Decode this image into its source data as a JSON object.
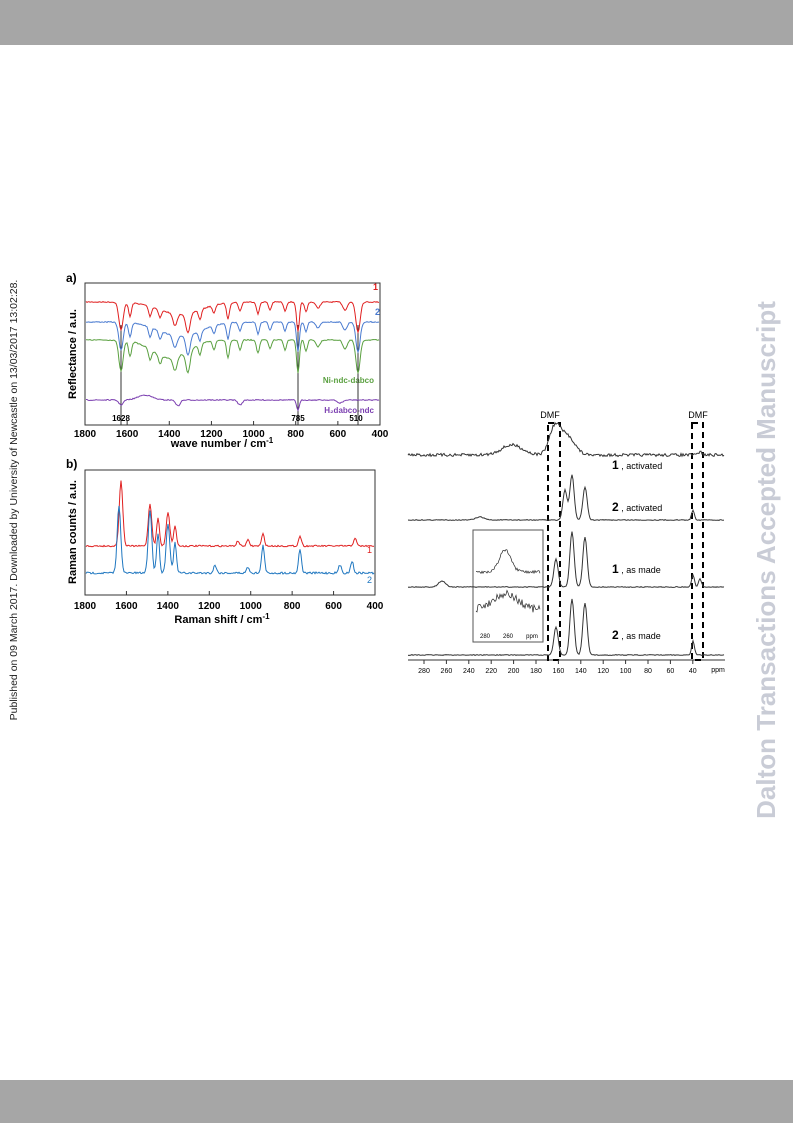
{
  "side_note": "Published on 09 March 2017. Downloaded by University of Newcastle on 13/03/2017 13:02:28.",
  "watermark": "Dalton Transactions Accepted Manuscript",
  "panel_a": {
    "label": "a)",
    "y_label": "Reflectance / a.u.",
    "x_label": "wave number  / cm",
    "x_label_sup": "-1",
    "x_ticks": [
      "1800",
      "1600",
      "1400",
      "1200",
      "1000",
      "800",
      "600",
      "400"
    ],
    "trace_labels": [
      "1",
      "2",
      "Ni-ndc-dabco",
      "H₂dabco-ndc"
    ],
    "peak_labels": [
      "1628",
      "785",
      "510"
    ]
  },
  "panel_b": {
    "label": "b)",
    "y_label": "Raman counts / a.u.",
    "x_label": "Raman shift  / cm",
    "x_label_sup": "-1",
    "x_ticks": [
      "1800",
      "1600",
      "1400",
      "1200",
      "1000",
      "800",
      "600",
      "400"
    ],
    "trace_labels": [
      "1",
      "2"
    ]
  },
  "nmr": {
    "x_ticks": [
      "280",
      "260",
      "240",
      "220",
      "200",
      "180",
      "160",
      "140",
      "120",
      "100",
      "80",
      "60",
      "40"
    ],
    "unit": "ppm",
    "dmf_labels": [
      "DMF",
      "DMF"
    ],
    "traces": [
      {
        "number": "1",
        "label": " , activated"
      },
      {
        "number": "2",
        "label": " , activated"
      },
      {
        "number": "1",
        "label": " , as made"
      },
      {
        "number": "2",
        "label": " , as made"
      }
    ],
    "inset_ticks": [
      "280",
      "260",
      "ppm"
    ]
  }
}
